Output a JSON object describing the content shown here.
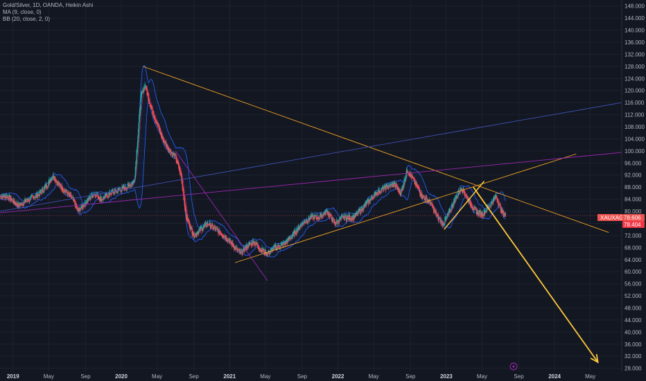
{
  "legend": {
    "line1": "Gold/Silver, 1D, OANDA, Heikin Ashi",
    "line2": "MA (9, close, 0)",
    "line3": "BB (20, close, 2, 0)"
  },
  "price_tags": {
    "symbol": "XAUXAG",
    "last": "78.606",
    "second": "78.404"
  },
  "colors": {
    "background": "#131722",
    "grid": "#1e222d",
    "up": "#26a69a",
    "down": "#ef5350",
    "ma": "#e91e63",
    "bb": "#2962ff",
    "trend_orange": "#f5a623",
    "trend_purple": "#9c27b0",
    "trend_blue": "#3f51b5",
    "arrow": "#ffc83d"
  },
  "chart_data": {
    "type": "candlestick",
    "title": "Gold/Silver, 1D, OANDA, Heikin Ashi",
    "y_ticks": [
      "28.000",
      "32.000",
      "36.000",
      "40.000",
      "44.000",
      "48.000",
      "52.000",
      "56.000",
      "60.000",
      "64.000",
      "68.000",
      "72.000",
      "76.000",
      "80.000",
      "84.000",
      "88.000",
      "92.000",
      "96.000",
      "100.000",
      "104.000",
      "108.000",
      "112.000",
      "116.000",
      "120.000",
      "124.000",
      "128.000",
      "132.000",
      "136.000",
      "140.000",
      "144.000",
      "148.000"
    ],
    "ylim": [
      27,
      150
    ],
    "x_ticks": [
      {
        "label": "2019",
        "t": 2019.0,
        "year": true
      },
      {
        "label": "May",
        "t": 2019.33
      },
      {
        "label": "Sep",
        "t": 2019.67
      },
      {
        "label": "2020",
        "t": 2020.0,
        "year": true
      },
      {
        "label": "May",
        "t": 2020.33
      },
      {
        "label": "Sep",
        "t": 2020.67
      },
      {
        "label": "2021",
        "t": 2021.0,
        "year": true
      },
      {
        "label": "May",
        "t": 2021.33
      },
      {
        "label": "Sep",
        "t": 2021.67
      },
      {
        "label": "2022",
        "t": 2022.0,
        "year": true
      },
      {
        "label": "May",
        "t": 2022.33
      },
      {
        "label": "Sep",
        "t": 2022.67
      },
      {
        "label": "2023",
        "t": 2023.0,
        "year": true
      },
      {
        "label": "May",
        "t": 2023.33
      },
      {
        "label": "Sep",
        "t": 2023.67
      },
      {
        "label": "2024",
        "t": 2024.0,
        "year": true
      },
      {
        "label": "May",
        "t": 2024.33
      }
    ],
    "xlim": [
      2018.88,
      2024.62
    ],
    "series_points": [
      [
        2018.88,
        85
      ],
      [
        2018.95,
        85
      ],
      [
        2019.05,
        82
      ],
      [
        2019.15,
        84
      ],
      [
        2019.25,
        86
      ],
      [
        2019.32,
        89
      ],
      [
        2019.37,
        92
      ],
      [
        2019.42,
        89
      ],
      [
        2019.5,
        86
      ],
      [
        2019.55,
        84
      ],
      [
        2019.6,
        80
      ],
      [
        2019.67,
        83
      ],
      [
        2019.75,
        86
      ],
      [
        2019.82,
        84
      ],
      [
        2019.9,
        86
      ],
      [
        2019.97,
        87
      ],
      [
        2020.05,
        88
      ],
      [
        2020.12,
        90
      ],
      [
        2020.18,
        118
      ],
      [
        2020.22,
        122
      ],
      [
        2020.26,
        116
      ],
      [
        2020.3,
        112
      ],
      [
        2020.38,
        104
      ],
      [
        2020.45,
        100
      ],
      [
        2020.5,
        98
      ],
      [
        2020.55,
        92
      ],
      [
        2020.6,
        78
      ],
      [
        2020.67,
        72
      ],
      [
        2020.73,
        74
      ],
      [
        2020.8,
        76
      ],
      [
        2020.87,
        74
      ],
      [
        2020.95,
        72
      ],
      [
        2021.0,
        70
      ],
      [
        2021.05,
        68
      ],
      [
        2021.1,
        66
      ],
      [
        2021.15,
        68
      ],
      [
        2021.22,
        70
      ],
      [
        2021.3,
        67
      ],
      [
        2021.35,
        66
      ],
      [
        2021.42,
        68
      ],
      [
        2021.5,
        69
      ],
      [
        2021.58,
        72
      ],
      [
        2021.67,
        76
      ],
      [
        2021.75,
        78
      ],
      [
        2021.82,
        78
      ],
      [
        2021.9,
        80
      ],
      [
        2021.97,
        76
      ],
      [
        2022.05,
        78
      ],
      [
        2022.15,
        78
      ],
      [
        2022.25,
        82
      ],
      [
        2022.35,
        86
      ],
      [
        2022.45,
        88
      ],
      [
        2022.52,
        89
      ],
      [
        2022.58,
        86
      ],
      [
        2022.64,
        94
      ],
      [
        2022.7,
        90
      ],
      [
        2022.78,
        85
      ],
      [
        2022.85,
        83
      ],
      [
        2022.92,
        78
      ],
      [
        2022.97,
        76
      ],
      [
        2023.02,
        79
      ],
      [
        2023.08,
        84
      ],
      [
        2023.14,
        88
      ],
      [
        2023.2,
        84
      ],
      [
        2023.27,
        80
      ],
      [
        2023.33,
        79
      ],
      [
        2023.4,
        82
      ],
      [
        2023.46,
        85
      ],
      [
        2023.51,
        80
      ],
      [
        2023.55,
        78.6
      ]
    ],
    "last_price": 78.606,
    "drawings": [
      {
        "type": "trendline",
        "color": "orange",
        "from": [
          2020.2,
          128
        ],
        "to": [
          2024.5,
          73
        ]
      },
      {
        "type": "trendline",
        "color": "orange",
        "from": [
          2021.05,
          63
        ],
        "to": [
          2024.2,
          99
        ]
      },
      {
        "type": "trendline",
        "color": "purple",
        "from": [
          2018.88,
          79.5
        ],
        "to": [
          2024.62,
          99.5
        ]
      },
      {
        "type": "trendline",
        "color": "blue",
        "from": [
          2018.88,
          80
        ],
        "to": [
          2024.62,
          116
        ]
      },
      {
        "type": "trendline",
        "color": "purple",
        "from": [
          2020.5,
          100
        ],
        "to": [
          2021.35,
          57
        ]
      },
      {
        "type": "trendline",
        "color": "yellow",
        "from": [
          2022.98,
          74
        ],
        "to": [
          2023.35,
          90
        ]
      },
      {
        "type": "arrow",
        "color": "yellow",
        "from": [
          2023.25,
          88
        ],
        "to": [
          2024.4,
          30
        ]
      }
    ],
    "grid": true,
    "legend_position": "top-left"
  }
}
